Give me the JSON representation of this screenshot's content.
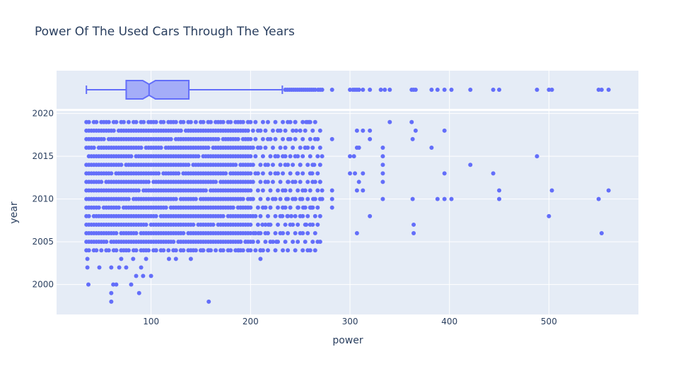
{
  "chart_data": [
    {
      "type": "box",
      "title": "Power Of The Used Cars Through The Years",
      "orientation": "horizontal",
      "notched": true,
      "color": "#636efa",
      "box": {
        "lower_fence": 35,
        "q1": 75,
        "median": 98,
        "q3": 138,
        "upper_fence": 232
      },
      "outliers": [
        235,
        237,
        239,
        241,
        243,
        245,
        247,
        249,
        251,
        253,
        255,
        257,
        259,
        261,
        263,
        265,
        268,
        270,
        272,
        282,
        300,
        303,
        305,
        307,
        309,
        313,
        320,
        331,
        335,
        340,
        362,
        364,
        366,
        382,
        388,
        395,
        402,
        421,
        444,
        450,
        488,
        500,
        503,
        550,
        553,
        560
      ],
      "xlim": [
        5,
        590
      ]
    },
    {
      "type": "scatter",
      "xlabel": "power",
      "ylabel": "year",
      "xlim": [
        5,
        590
      ],
      "ylim": [
        1996.5,
        2020.3
      ],
      "xticks": [
        100,
        200,
        300,
        400,
        500
      ],
      "yticks": [
        2000,
        2005,
        2010,
        2015,
        2020
      ],
      "color": "#636efa",
      "dense_band": {
        "x_from": 35,
        "x_to": 272,
        "x_step": 2.5,
        "y_from": 2004,
        "y_to": 2019
      },
      "points": [
        [
          37,
          2000
        ],
        [
          60,
          1998
        ],
        [
          60,
          1999
        ],
        [
          62,
          2000
        ],
        [
          65,
          2000
        ],
        [
          80,
          2000
        ],
        [
          88,
          1999
        ],
        [
          100,
          2001
        ],
        [
          85,
          2001
        ],
        [
          92,
          2001
        ],
        [
          158,
          1998
        ],
        [
          36,
          2003
        ],
        [
          36,
          2002
        ],
        [
          48,
          2002
        ],
        [
          60,
          2002
        ],
        [
          68,
          2002
        ],
        [
          75,
          2002
        ],
        [
          90,
          2002
        ],
        [
          70,
          2003
        ],
        [
          82,
          2003
        ],
        [
          95,
          2003
        ],
        [
          118,
          2003
        ],
        [
          140,
          2003
        ],
        [
          125,
          2003
        ],
        [
          210,
          2003
        ],
        [
          210,
          2004
        ],
        [
          152,
          2004
        ],
        [
          158,
          2004
        ],
        [
          188,
          2004
        ],
        [
          105,
          2004
        ],
        [
          226,
          2005
        ],
        [
          195,
          2005
        ],
        [
          190,
          2005
        ],
        [
          203,
          2006
        ],
        [
          208,
          2006
        ],
        [
          215,
          2006
        ],
        [
          212,
          2007
        ],
        [
          218,
          2007
        ],
        [
          237,
          2008
        ],
        [
          241,
          2008
        ],
        [
          256,
          2007
        ],
        [
          232,
          2008
        ],
        [
          248,
          2009
        ],
        [
          253,
          2009
        ],
        [
          261,
          2009
        ],
        [
          236,
          2010
        ],
        [
          245,
          2010
        ],
        [
          252,
          2010
        ],
        [
          263,
          2010
        ],
        [
          272,
          2010
        ],
        [
          282,
          2010
        ],
        [
          282,
          2009
        ],
        [
          272,
          2011
        ],
        [
          282,
          2011
        ],
        [
          238,
          2012
        ],
        [
          247,
          2013
        ],
        [
          262,
          2013
        ],
        [
          270,
          2012
        ],
        [
          272,
          2015
        ],
        [
          255,
          2016
        ],
        [
          282,
          2017
        ],
        [
          238,
          2017
        ],
        [
          246,
          2018
        ],
        [
          256,
          2019
        ],
        [
          259,
          2019
        ],
        [
          245,
          2019
        ],
        [
          225,
          2015
        ],
        [
          235,
          2015
        ],
        [
          250,
          2014
        ],
        [
          264,
          2014
        ],
        [
          300,
          2013
        ],
        [
          300,
          2015
        ],
        [
          304,
          2015
        ],
        [
          307,
          2016
        ],
        [
          309,
          2016
        ],
        [
          307,
          2018
        ],
        [
          313,
          2018
        ],
        [
          320,
          2018
        ],
        [
          320,
          2017
        ],
        [
          307,
          2011
        ],
        [
          313,
          2011
        ],
        [
          309,
          2012
        ],
        [
          305,
          2013
        ],
        [
          313,
          2013
        ],
        [
          320,
          2008
        ],
        [
          307,
          2006
        ],
        [
          333,
          2016
        ],
        [
          333,
          2015
        ],
        [
          333,
          2014
        ],
        [
          333,
          2013
        ],
        [
          333,
          2012
        ],
        [
          333,
          2010
        ],
        [
          340,
          2019
        ],
        [
          362,
          2019
        ],
        [
          363,
          2017
        ],
        [
          366,
          2018
        ],
        [
          363,
          2010
        ],
        [
          364,
          2007
        ],
        [
          364,
          2006
        ],
        [
          382,
          2016
        ],
        [
          388,
          2010
        ],
        [
          395,
          2010
        ],
        [
          395,
          2013
        ],
        [
          395,
          2018
        ],
        [
          402,
          2010
        ],
        [
          421,
          2014
        ],
        [
          444,
          2013
        ],
        [
          450,
          2011
        ],
        [
          450,
          2010
        ],
        [
          488,
          2015
        ],
        [
          500,
          2008
        ],
        [
          503,
          2011
        ],
        [
          550,
          2010
        ],
        [
          553,
          2006
        ],
        [
          560,
          2011
        ]
      ]
    }
  ]
}
